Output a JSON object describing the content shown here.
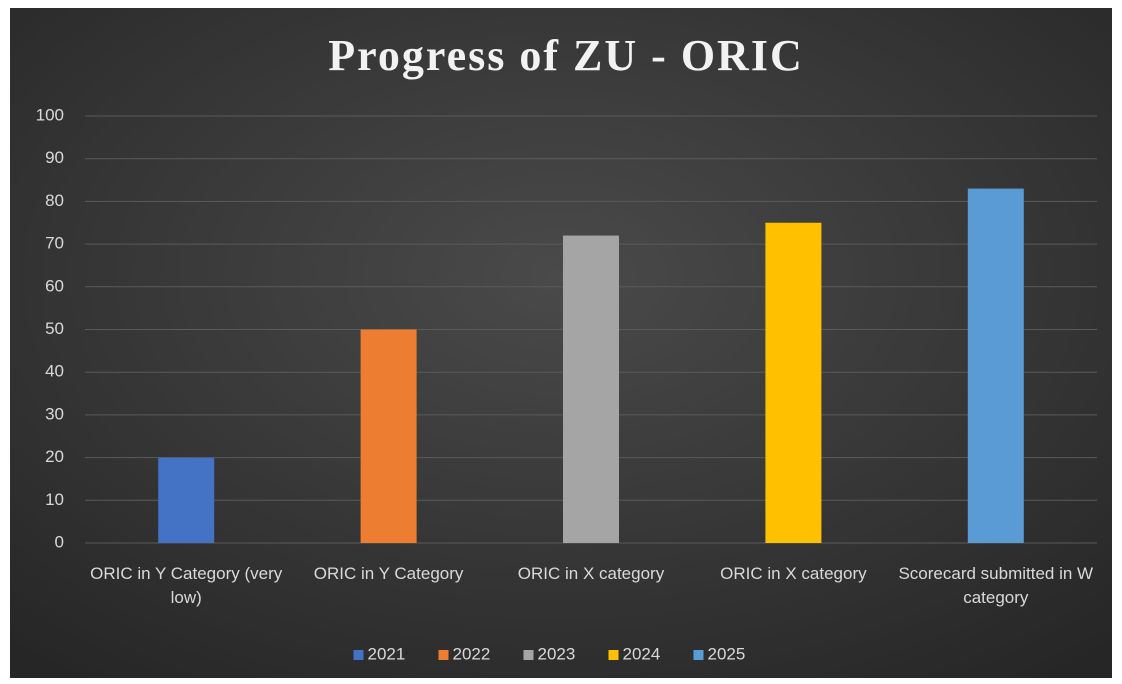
{
  "chart_data": {
    "type": "bar",
    "title": "Progress of ZU - ORIC",
    "categories": [
      "ORIC in Y Category (very low)",
      "ORIC in Y Category",
      "ORIC in X category",
      "ORIC in X category",
      "Scorecard submitted in W category"
    ],
    "series": [
      {
        "name": "2021",
        "color": "#4472c4",
        "values": [
          20,
          null,
          null,
          null,
          null
        ]
      },
      {
        "name": "2022",
        "color": "#ed7d31",
        "values": [
          null,
          50,
          null,
          null,
          null
        ]
      },
      {
        "name": "2023",
        "color": "#a5a5a5",
        "values": [
          null,
          null,
          72,
          null,
          null
        ]
      },
      {
        "name": "2024",
        "color": "#ffc000",
        "values": [
          null,
          null,
          null,
          75,
          null
        ]
      },
      {
        "name": "2025",
        "color": "#5b9bd5",
        "values": [
          null,
          null,
          null,
          null,
          83
        ]
      }
    ],
    "ylim": [
      0,
      100
    ],
    "yticks": [
      0,
      10,
      20,
      30,
      40,
      50,
      60,
      70,
      80,
      90,
      100
    ],
    "grid": true,
    "legend": "bottom"
  }
}
